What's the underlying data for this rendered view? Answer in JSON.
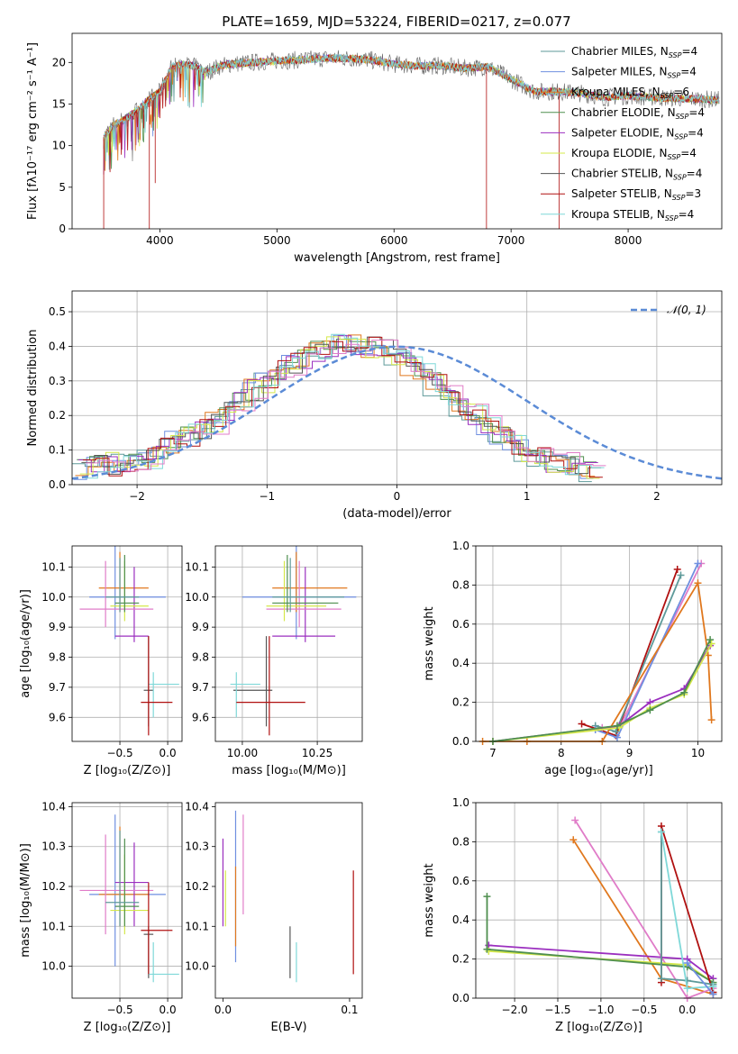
{
  "figure_title": "PLATE=1659, MJD=53224, FIBERID=0217, z=0.077",
  "colors": {
    "chabrier_miles": "#5e9a9a",
    "salpeter_miles": "#6f8fe0",
    "kroupa_miles": "#e0781e",
    "chabrier_elodie": "#4f8f4f",
    "salpeter_elodie": "#9b2fbf",
    "kroupa_elodie": "#d4e84a",
    "chabrier_stelib": "#555555",
    "salpeter_stelib": "#b01010",
    "kroupa_stelib": "#7fd8d8",
    "pink": "#e07cc8",
    "gauss": "#5b8bd6"
  },
  "chart_data": [
    {
      "type": "line",
      "id": "spectrum",
      "xlabel": "wavelength [Angstrom, rest frame]",
      "ylabel": "Flux [fλ10⁻¹⁷ erg cm⁻² s⁻¹ A⁻¹]",
      "xlim": [
        3250,
        8800
      ],
      "ylim": [
        0,
        23.5
      ],
      "xticks": [
        4000,
        5000,
        6000,
        7000,
        8000
      ],
      "yticks": [
        0,
        5,
        10,
        15,
        20
      ],
      "grid": false,
      "legend": "top-right",
      "legend_entries": [
        {
          "label": "Chabrier MILES, N",
          "sub": "SSP",
          "suffix": "=4",
          "color": "#5e9a9a"
        },
        {
          "label": "Salpeter MILES, N",
          "sub": "SSP",
          "suffix": "=4",
          "color": "#6f8fe0"
        },
        {
          "label": "Kroupa MILES, N",
          "sub": "SSP",
          "suffix": "=6",
          "color": "#e0781e"
        },
        {
          "label": "Chabrier ELODIE, N",
          "sub": "SSP",
          "suffix": "=4",
          "color": "#4f8f4f"
        },
        {
          "label": "Salpeter ELODIE, N",
          "sub": "SSP",
          "suffix": "=4",
          "color": "#9b2fbf"
        },
        {
          "label": "Kroupa ELODIE, N",
          "sub": "SSP",
          "suffix": "=4",
          "color": "#d4e84a"
        },
        {
          "label": "Chabrier STELIB, N",
          "sub": "SSP",
          "suffix": "=4",
          "color": "#555555"
        },
        {
          "label": "Salpeter STELIB, N",
          "sub": "SSP",
          "suffix": "=3",
          "color": "#b01010"
        },
        {
          "label": "Kroupa STELIB, N",
          "sub": "SSP",
          "suffix": "=4",
          "color": "#7fd8d8"
        }
      ],
      "series": [
        {
          "name": "continuum",
          "x": [
            3520,
            3600,
            3700,
            3800,
            3900,
            4000,
            4100,
            4200,
            4300,
            4400,
            4500,
            4600,
            4800,
            5000,
            5200,
            5400,
            5600,
            5800,
            6000,
            6200,
            6400,
            6600,
            6800,
            7000,
            7200,
            7400,
            7600,
            7800,
            8000,
            8200,
            8400,
            8600,
            8780
          ],
          "y": [
            11,
            12.5,
            13.2,
            14.2,
            15.5,
            16.5,
            19.5,
            19.8,
            19.5,
            18.8,
            19.5,
            19.8,
            20.0,
            20.2,
            20.3,
            20.5,
            20.5,
            20.3,
            19.8,
            19.6,
            19.6,
            19.3,
            19.5,
            18.0,
            16.5,
            16.5,
            16.3,
            15.8,
            16.0,
            15.8,
            15.7,
            15.6,
            15.5
          ]
        }
      ]
    },
    {
      "type": "area",
      "id": "residual-histogram",
      "xlabel": "(data-model)/error",
      "ylabel": "Normed distribution",
      "xlim": [
        -2.5,
        2.5
      ],
      "ylim": [
        0,
        0.56
      ],
      "xticks": [
        -2,
        -1,
        0,
        1,
        2
      ],
      "xtick_labels": [
        "−2",
        "−1",
        "0",
        "1",
        "2"
      ],
      "yticks": [
        0,
        0.1,
        0.2,
        0.3,
        0.4,
        0.5
      ],
      "ytick_labels": [
        "0.0",
        "0.1",
        "0.2",
        "0.3",
        "0.4",
        "0.5"
      ],
      "grid": true,
      "legend": "top-right",
      "legend_entries": [
        {
          "label": "𝒩(0, 1)",
          "color": "#5b8bd6"
        }
      ],
      "gaussian": {
        "mean": 0,
        "sigma": 1
      },
      "bin_width": 0.1,
      "histogram_profile": [
        0.04,
        0.05,
        0.06,
        0.07,
        0.07,
        0.08,
        0.1,
        0.12,
        0.14,
        0.16,
        0.18,
        0.21,
        0.24,
        0.27,
        0.3,
        0.33,
        0.35,
        0.37,
        0.39,
        0.4,
        0.41,
        0.41,
        0.4,
        0.39,
        0.37,
        0.35,
        0.32,
        0.29,
        0.26,
        0.23,
        0.2,
        0.17,
        0.14,
        0.12,
        0.1,
        0.08,
        0.07,
        0.06,
        0.05,
        0.04
      ]
    },
    {
      "type": "scatter",
      "id": "age-vs-Z",
      "xlabel": "Z [log₁₀(Z/Z⊙)]",
      "ylabel": "age  [log₁₀(age/yr)]",
      "xlim": [
        -1.0,
        0.15
      ],
      "ylim": [
        9.52,
        10.17
      ],
      "xticks": [
        -0.5,
        0.0
      ],
      "xtick_labels": [
        "−0.5",
        "0.0"
      ],
      "yticks": [
        9.6,
        9.7,
        9.8,
        9.9,
        10.0,
        10.1
      ],
      "ytick_labels": [
        "9.6",
        "9.7",
        "9.8",
        "9.9",
        "10.0",
        "10.1"
      ],
      "grid": true
    },
    {
      "type": "scatter",
      "id": "age-vs-mass",
      "xlabel": "mass [log₁₀(M/M⊙)]",
      "ylabel": "",
      "xlim": [
        9.91,
        10.4
      ],
      "ylim": [
        9.52,
        10.17
      ],
      "xticks": [
        10.0,
        10.25
      ],
      "xtick_labels": [
        "10.00",
        "10.25"
      ],
      "yticks": [
        9.6,
        9.7,
        9.8,
        9.9,
        10.0,
        10.1
      ],
      "ytick_labels": [
        "9.6",
        "9.7",
        "9.8",
        "9.9",
        "10.0",
        "10.1"
      ],
      "grid": true
    },
    {
      "type": "line",
      "id": "weight-vs-age",
      "xlabel": "age  [log₁₀(age/yr)]",
      "ylabel": "mass weight",
      "xlim": [
        6.75,
        10.35
      ],
      "ylim": [
        0,
        1.0
      ],
      "xticks": [
        7,
        8,
        9,
        10
      ],
      "xtick_labels": [
        "7",
        "8",
        "9",
        "10"
      ],
      "yticks": [
        0,
        0.2,
        0.4,
        0.6,
        0.8,
        1.0
      ],
      "ytick_labels": [
        "0.0",
        "0.2",
        "0.4",
        "0.6",
        "0.8",
        "1.0"
      ],
      "grid": true,
      "series": [
        {
          "color": "#b01010",
          "x": [
            8.3,
            8.8,
            9.7
          ],
          "y": [
            0.09,
            0.03,
            0.88
          ]
        },
        {
          "color": "#5e9a9a",
          "x": [
            8.5,
            8.8,
            9.75
          ],
          "y": [
            0.08,
            0.05,
            0.85
          ]
        },
        {
          "color": "#e07cc8",
          "x": [
            8.6,
            8.85,
            10.05
          ],
          "y": [
            0.07,
            0.07,
            0.91
          ]
        },
        {
          "color": "#6f8fe0",
          "x": [
            8.5,
            8.82,
            10.0
          ],
          "y": [
            0.06,
            0.02,
            0.91
          ]
        },
        {
          "color": "#e0781e",
          "x": [
            6.85,
            7.5,
            8.6,
            10.0,
            10.15,
            10.2
          ],
          "y": [
            0.0,
            0.0,
            0.0,
            0.81,
            0.44,
            0.11
          ]
        },
        {
          "color": "#9b2fbf",
          "x": [
            7.0,
            8.85,
            9.3,
            9.8,
            10.18
          ],
          "y": [
            0.0,
            0.08,
            0.2,
            0.27,
            0.49
          ]
        },
        {
          "color": "#d4e84a",
          "x": [
            7.0,
            8.85,
            9.3,
            9.8,
            10.2
          ],
          "y": [
            0.0,
            0.07,
            0.17,
            0.24,
            0.5
          ]
        },
        {
          "color": "#4f8f4f",
          "x": [
            7.0,
            8.82,
            9.3,
            9.8,
            10.18
          ],
          "y": [
            0.0,
            0.08,
            0.16,
            0.25,
            0.52
          ]
        }
      ]
    },
    {
      "type": "scatter",
      "id": "mass-vs-Z",
      "xlabel": "Z [log₁₀(Z/Z⊙)]",
      "ylabel": "mass [log₁₀(M/M⊙)]",
      "xlim": [
        -1.0,
        0.15
      ],
      "ylim": [
        9.92,
        10.41
      ],
      "xticks": [
        -0.5,
        0.0
      ],
      "xtick_labels": [
        "−0.5",
        "0.0"
      ],
      "yticks": [
        10.0,
        10.1,
        10.2,
        10.3,
        10.4
      ],
      "ytick_labels": [
        "10.0",
        "10.1",
        "10.2",
        "10.3",
        "10.4"
      ],
      "grid": true
    },
    {
      "type": "scatter",
      "id": "mass-vs-ebv",
      "xlabel": "E(B-V)",
      "ylabel": "",
      "xlim": [
        -0.006,
        0.11
      ],
      "ylim": [
        9.92,
        10.41
      ],
      "xticks": [
        0.0,
        0.1
      ],
      "xtick_labels": [
        "0.0",
        "0.1"
      ],
      "yticks": [
        10.0,
        10.1,
        10.2,
        10.3,
        10.4
      ],
      "ytick_labels": [
        "10.0",
        "10.1",
        "10.2",
        "10.3",
        "10.4"
      ],
      "grid": false,
      "points": [
        {
          "x": 0.0,
          "ylo": 10.1,
          "yhi": 10.32,
          "color": "#9b2fbf"
        },
        {
          "x": 0.002,
          "ylo": 10.1,
          "yhi": 10.24,
          "color": "#d4e84a"
        },
        {
          "x": 0.01,
          "ylo": 10.01,
          "yhi": 10.39,
          "color": "#6f8fe0"
        },
        {
          "x": 0.01,
          "ylo": 10.05,
          "yhi": 10.25,
          "color": "#e0781e"
        },
        {
          "x": 0.016,
          "ylo": 10.13,
          "yhi": 10.38,
          "color": "#e07cc8"
        },
        {
          "x": 0.053,
          "ylo": 9.97,
          "yhi": 10.1,
          "color": "#555555"
        },
        {
          "x": 0.058,
          "ylo": 9.96,
          "yhi": 10.06,
          "color": "#7fd8d8"
        },
        {
          "x": 0.103,
          "ylo": 9.98,
          "yhi": 10.24,
          "color": "#b01010"
        }
      ]
    },
    {
      "type": "line",
      "id": "weight-vs-Z",
      "xlabel": "Z [log₁₀(Z/Z⊙)]",
      "ylabel": "mass weight",
      "xlim": [
        -2.45,
        0.4
      ],
      "ylim": [
        0,
        1.0
      ],
      "xticks": [
        -2.0,
        -1.5,
        -1.0,
        -0.5,
        0.0
      ],
      "xtick_labels": [
        "−2.0",
        "−1.5",
        "−1.0",
        "−0.5",
        "0.0"
      ],
      "yticks": [
        0,
        0.2,
        0.4,
        0.6,
        0.8,
        1.0
      ],
      "ytick_labels": [
        "0.0",
        "0.2",
        "0.4",
        "0.6",
        "0.8",
        "1.0"
      ],
      "grid": true,
      "series": [
        {
          "color": "#e0781e",
          "x": [
            -1.32,
            -0.3,
            0.3
          ],
          "y": [
            0.81,
            0.1,
            0.02
          ]
        },
        {
          "color": "#e07cc8",
          "x": [
            -1.3,
            0.0,
            0.3
          ],
          "y": [
            0.91,
            0.0,
            0.05
          ]
        },
        {
          "color": "#9b2fbf",
          "x": [
            -2.3,
            0.0,
            0.3
          ],
          "y": [
            0.27,
            0.2,
            0.1
          ]
        },
        {
          "color": "#d4e84a",
          "x": [
            -2.3,
            0.0,
            0.3
          ],
          "y": [
            0.24,
            0.17,
            0.08
          ]
        },
        {
          "color": "#4f8f4f",
          "x": [
            -2.32,
            -2.32,
            0.0,
            0.3
          ],
          "y": [
            0.52,
            0.25,
            0.16,
            0.08
          ]
        },
        {
          "color": "#b01010",
          "x": [
            -0.3,
            -0.3,
            0.3
          ],
          "y": [
            0.08,
            0.88,
            0.03
          ]
        },
        {
          "color": "#5e9a9a",
          "x": [
            -0.3,
            -0.3,
            0.0,
            0.3
          ],
          "y": [
            0.85,
            0.1,
            0.09,
            0.07
          ]
        },
        {
          "color": "#7fd8d8",
          "x": [
            -0.3,
            0.0,
            0.3
          ],
          "y": [
            0.85,
            0.05,
            0.06
          ]
        },
        {
          "color": "#6f8fe0",
          "x": [
            0.0,
            0.3
          ],
          "y": [
            0.18,
            0.02
          ]
        }
      ]
    }
  ],
  "crosshairs_ageZ_mass": [
    {
      "color": "#6f8fe0",
      "z": -0.55,
      "zlo": -0.82,
      "zhi": -0.02,
      "age": 10.0,
      "agelo": 9.86,
      "agehi": 10.17,
      "mass": 10.18,
      "masslo": 10.0,
      "masshi": 10.38
    },
    {
      "color": "#e0781e",
      "z": -0.5,
      "zlo": -0.72,
      "zhi": -0.2,
      "age": 10.03,
      "agelo": 9.95,
      "agehi": 10.15,
      "mass": 10.18,
      "masslo": 10.1,
      "masshi": 10.35
    },
    {
      "color": "#9b2fbf",
      "z": -0.35,
      "zlo": -0.55,
      "zhi": -0.2,
      "age": 9.87,
      "agelo": 9.85,
      "agehi": 10.1,
      "mass": 10.21,
      "masslo": 10.1,
      "masshi": 10.31
    },
    {
      "color": "#e07cc8",
      "z": -0.65,
      "zlo": -0.92,
      "zhi": -0.15,
      "age": 9.96,
      "agelo": 9.9,
      "agehi": 10.12,
      "mass": 10.19,
      "masslo": 10.08,
      "masshi": 10.33
    },
    {
      "color": "#d4e84a",
      "z": -0.45,
      "zlo": -0.6,
      "zhi": -0.2,
      "age": 9.97,
      "agelo": 9.92,
      "agehi": 10.12,
      "mass": 10.14,
      "masslo": 10.08,
      "masshi": 10.28
    },
    {
      "color": "#4f8f4f",
      "z": -0.45,
      "zlo": -0.55,
      "zhi": -0.3,
      "age": 9.98,
      "agelo": 9.95,
      "agehi": 10.14,
      "mass": 10.15,
      "masslo": 10.1,
      "masshi": 10.32
    },
    {
      "color": "#5e9a9a",
      "z": -0.5,
      "zlo": -0.65,
      "zhi": -0.3,
      "age": 10.0,
      "agelo": 9.95,
      "agehi": 10.13,
      "mass": 10.16,
      "masslo": 10.1,
      "masshi": 10.34
    },
    {
      "color": "#555555",
      "z": -0.2,
      "zlo": -0.25,
      "zhi": -0.15,
      "age": 9.69,
      "agelo": 9.57,
      "agehi": 9.87,
      "mass": 10.08,
      "masslo": 9.97,
      "masshi": 10.1
    },
    {
      "color": "#7fd8d8",
      "z": -0.15,
      "zlo": -0.2,
      "zhi": 0.12,
      "age": 9.71,
      "agelo": 9.6,
      "agehi": 9.75,
      "mass": 9.98,
      "masslo": 9.96,
      "masshi": 10.06
    },
    {
      "color": "#b01010",
      "z": -0.2,
      "zlo": -0.28,
      "zhi": 0.05,
      "age": 9.65,
      "agelo": 9.54,
      "agehi": 9.87,
      "mass": 10.09,
      "masslo": 9.98,
      "masshi": 10.21
    }
  ]
}
